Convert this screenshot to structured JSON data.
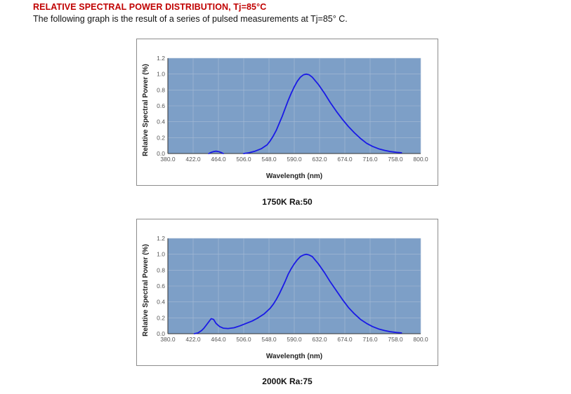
{
  "document": {
    "title": "RELATIVE SPECTRAL POWER DISTRIBUTION, Tj=85°C",
    "subtitle": "The following graph is the result of a series of pulsed measurements at Tj=85° C."
  },
  "colors": {
    "plot_background": "#7d9fc7",
    "line": "#1a1ae6",
    "grid": "#a8bcd6"
  },
  "chart_data": [
    {
      "type": "line",
      "caption": "1750K Ra:50",
      "xlabel": "Wavelength (nm)",
      "ylabel": "Relative Spectral Power (%)",
      "xlim": [
        380,
        800
      ],
      "ylim": [
        0,
        1.2
      ],
      "x_ticks": [
        "380.0",
        "422.0",
        "464.0",
        "506.0",
        "548.0",
        "590.0",
        "632.0",
        "674.0",
        "716.0",
        "758.0",
        "800.0"
      ],
      "y_ticks": [
        "0.0",
        "0.2",
        "0.4",
        "0.6",
        "0.8",
        "1.0",
        "1.2"
      ],
      "grid": true,
      "legend": "none",
      "series": [
        {
          "segments": [
            {
              "x": [
                448,
                452,
                456,
                460,
                464,
                468,
                472
              ],
              "y": [
                0.0,
                0.015,
                0.025,
                0.03,
                0.025,
                0.015,
                0.0
              ]
            },
            {
              "x": [
                506,
                515,
                525,
                535,
                545,
                550,
                555,
                560,
                565,
                570,
                575,
                580,
                585,
                590,
                595,
                600,
                605,
                610,
                615,
                620,
                630,
                640,
                650,
                660,
                670,
                680,
                690,
                700,
                710,
                720,
                730,
                740,
                750,
                760,
                768
              ],
              "y": [
                0.0,
                0.01,
                0.03,
                0.06,
                0.11,
                0.16,
                0.22,
                0.29,
                0.38,
                0.47,
                0.57,
                0.67,
                0.76,
                0.84,
                0.91,
                0.96,
                0.99,
                1.0,
                0.99,
                0.96,
                0.87,
                0.76,
                0.64,
                0.53,
                0.43,
                0.34,
                0.26,
                0.19,
                0.13,
                0.09,
                0.06,
                0.04,
                0.025,
                0.015,
                0.01
              ]
            }
          ]
        }
      ]
    },
    {
      "type": "line",
      "caption": "2000K Ra:75",
      "xlabel": "Wavelength (nm)",
      "ylabel": "Relative Spectral Power (%)",
      "xlim": [
        380,
        800
      ],
      "ylim": [
        0,
        1.2
      ],
      "x_ticks": [
        "380.0",
        "422.0",
        "464.0",
        "506.0",
        "548.0",
        "590.0",
        "632.0",
        "674.0",
        "716.0",
        "758.0",
        "800.0"
      ],
      "y_ticks": [
        "0.0",
        "0.2",
        "0.4",
        "0.6",
        "0.8",
        "1.0",
        "1.2"
      ],
      "grid": true,
      "legend": "none",
      "series": [
        {
          "segments": [
            {
              "x": [
                424,
                430,
                436,
                440,
                444,
                448,
                452,
                456,
                460,
                466,
                472,
                480,
                490,
                500,
                510,
                520,
                530,
                540,
                550,
                555,
                560,
                565,
                570,
                575,
                580,
                585,
                590,
                595,
                600,
                605,
                610,
                615,
                620,
                630,
                640,
                650,
                660,
                670,
                680,
                690,
                700,
                710,
                720,
                730,
                740,
                750,
                760,
                768
              ],
              "y": [
                0.0,
                0.01,
                0.04,
                0.07,
                0.11,
                0.15,
                0.19,
                0.18,
                0.13,
                0.09,
                0.07,
                0.065,
                0.075,
                0.1,
                0.13,
                0.16,
                0.2,
                0.25,
                0.32,
                0.37,
                0.43,
                0.5,
                0.58,
                0.66,
                0.75,
                0.82,
                0.88,
                0.93,
                0.97,
                0.99,
                1.0,
                0.99,
                0.97,
                0.88,
                0.77,
                0.65,
                0.54,
                0.43,
                0.33,
                0.25,
                0.18,
                0.13,
                0.09,
                0.06,
                0.04,
                0.025,
                0.015,
                0.01
              ]
            }
          ]
        }
      ]
    }
  ]
}
